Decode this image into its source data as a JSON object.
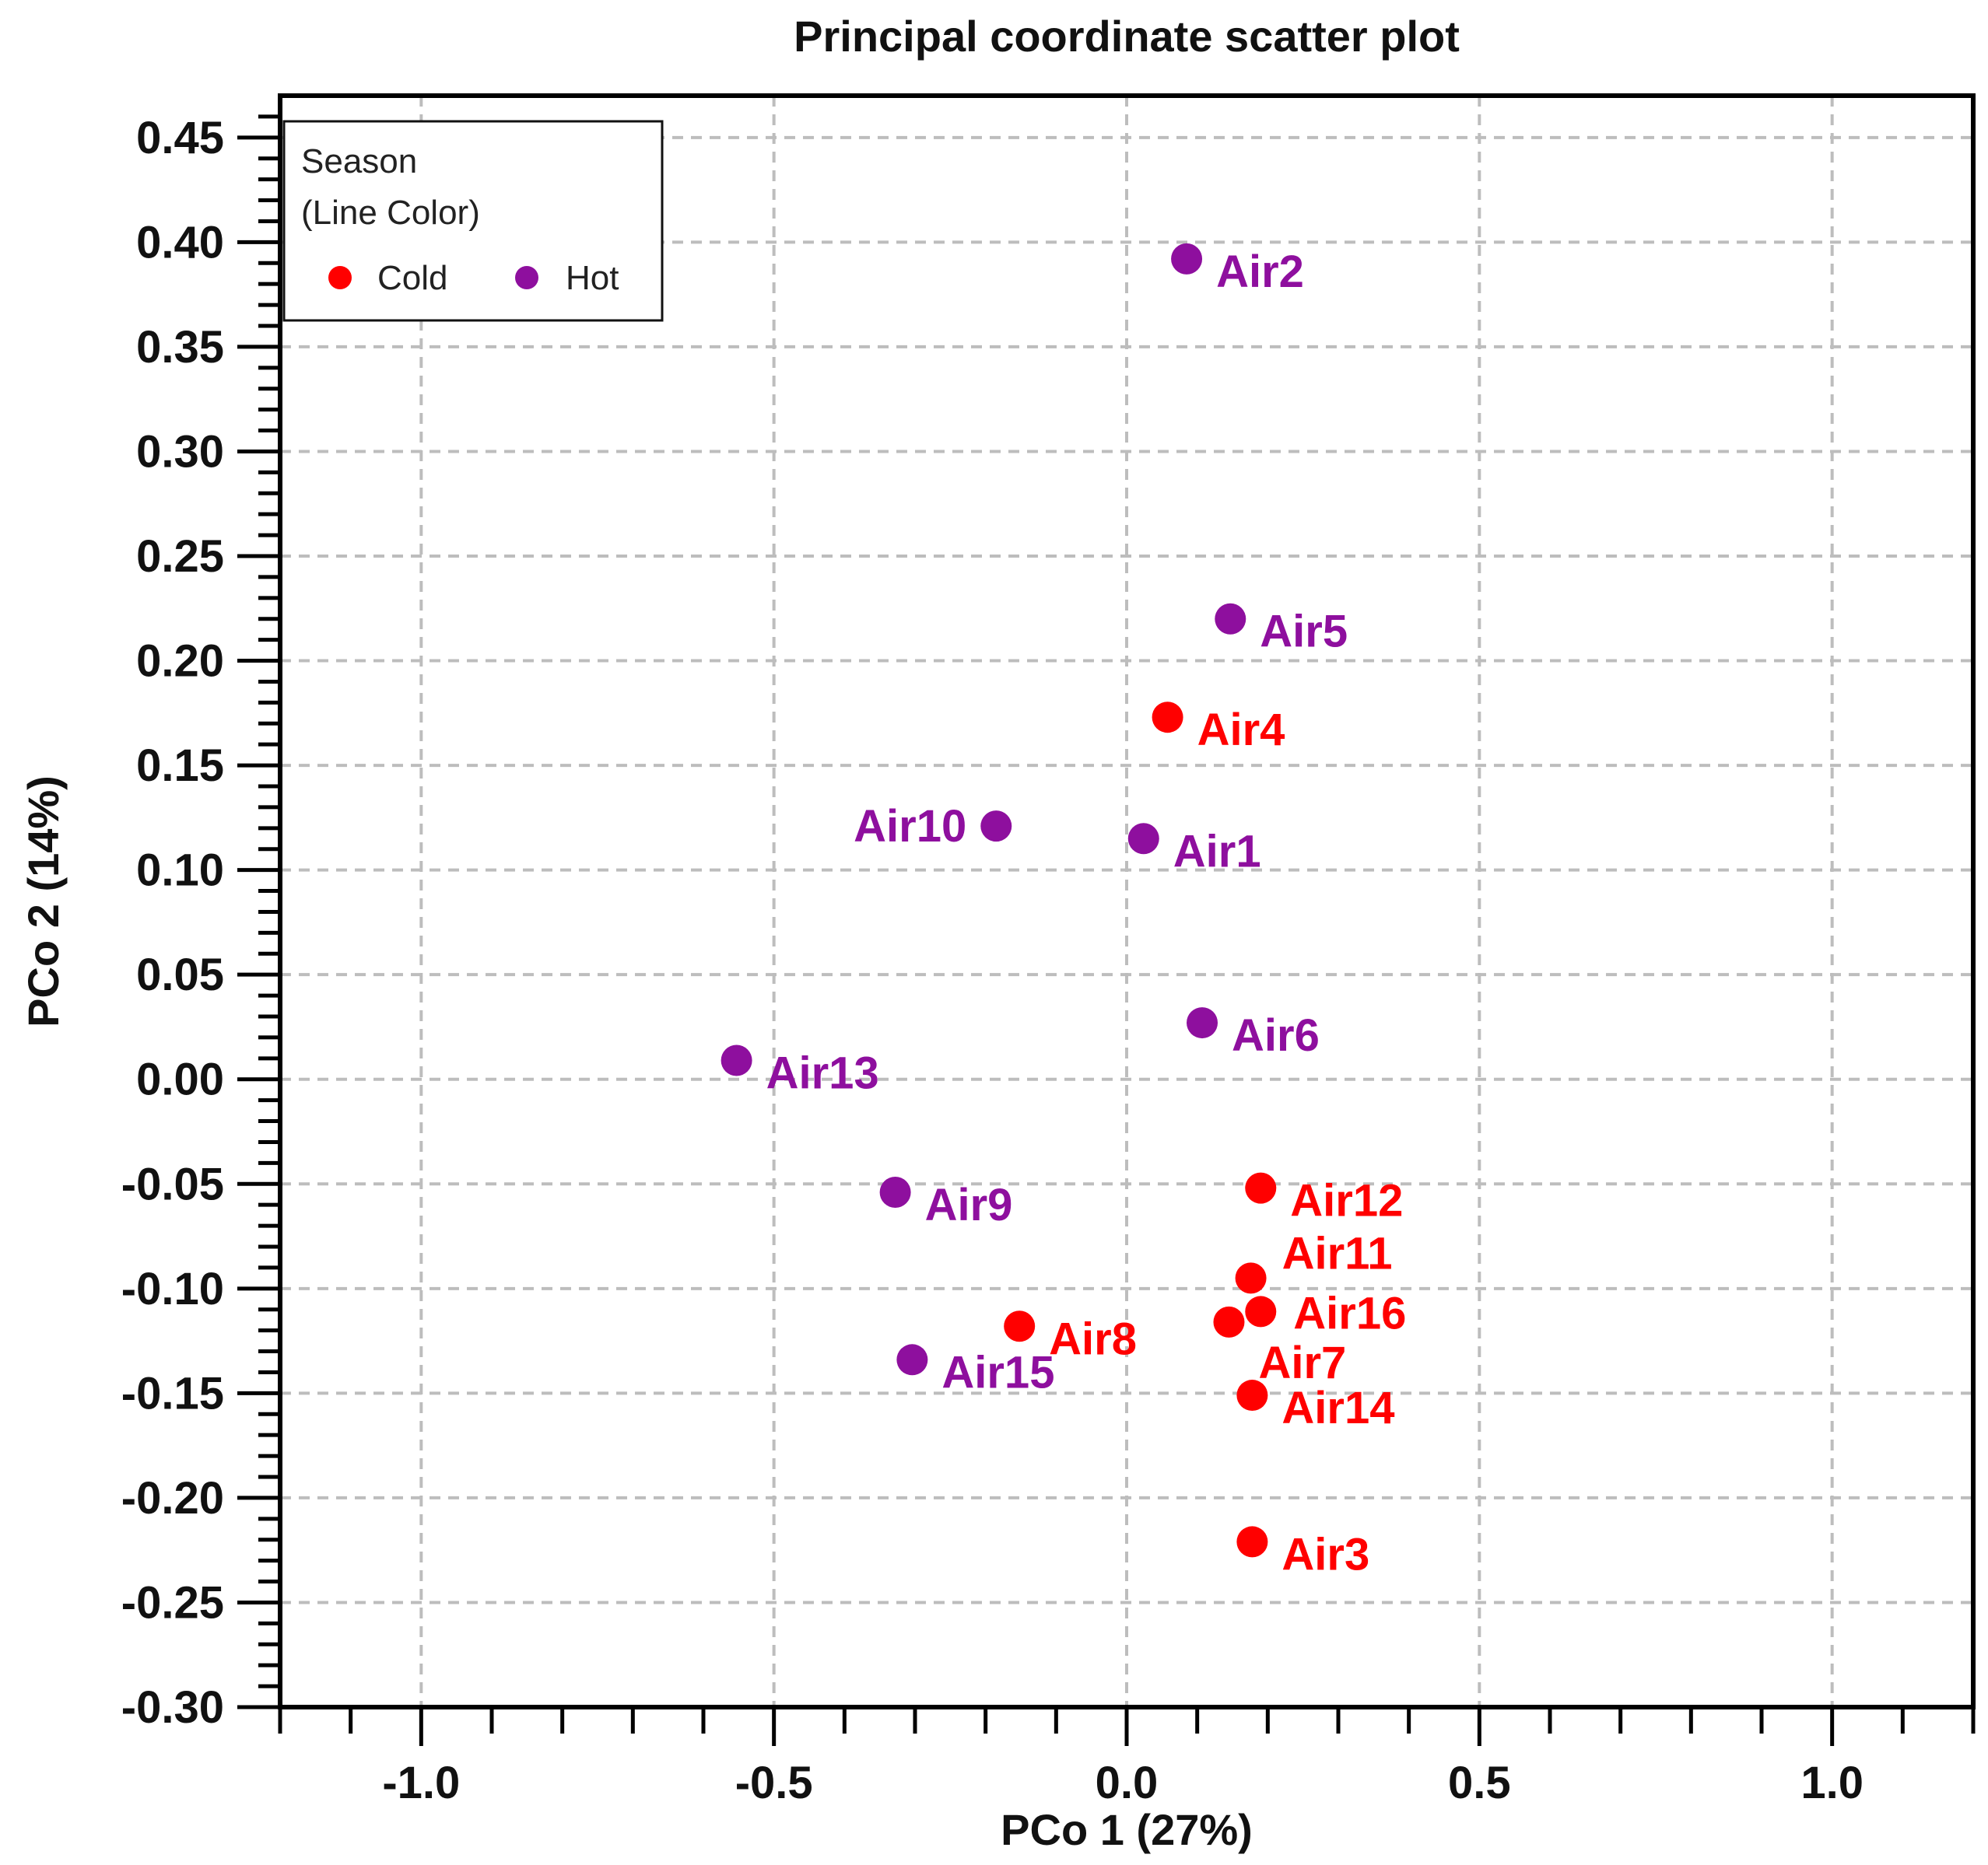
{
  "chart_data": {
    "type": "scatter",
    "title": "Principal coordinate scatter plot",
    "xlabel": "PCo 1 (27%)",
    "ylabel": "PCo 2 (14%)",
    "xlim": [
      -1.2,
      1.2
    ],
    "ylim": [
      -0.3,
      0.47
    ],
    "xticks": [
      "-1.0",
      "-0.5",
      "0.0",
      "0.5",
      "1.0"
    ],
    "yticks": [
      "0.45",
      "0.40",
      "0.35",
      "0.30",
      "0.25",
      "0.20",
      "0.15",
      "0.10",
      "0.05",
      "0.00",
      "-0.05",
      "-0.10",
      "-0.15",
      "-0.20",
      "-0.25",
      "-0.30"
    ],
    "grid": true,
    "legend": {
      "title": "Season",
      "subtitle": "(Line Color)",
      "placement": "top-left",
      "entries": [
        {
          "name": "Cold",
          "color": "#ff0000"
        },
        {
          "name": "Hot",
          "color": "#8e0f9e"
        }
      ]
    },
    "points": [
      {
        "label": "Air2",
        "group": "Hot",
        "x": 0.085,
        "y": 0.392
      },
      {
        "label": "Air5",
        "group": "Hot",
        "x": 0.147,
        "y": 0.22
      },
      {
        "label": "Air4",
        "group": "Cold",
        "x": 0.058,
        "y": 0.173
      },
      {
        "label": "Air10",
        "group": "Hot",
        "x": -0.185,
        "y": 0.121
      },
      {
        "label": "Air1",
        "group": "Hot",
        "x": 0.024,
        "y": 0.115
      },
      {
        "label": "Air6",
        "group": "Hot",
        "x": 0.107,
        "y": 0.027
      },
      {
        "label": "Air13",
        "group": "Hot",
        "x": -0.553,
        "y": 0.009
      },
      {
        "label": "Air9",
        "group": "Hot",
        "x": -0.328,
        "y": -0.054
      },
      {
        "label": "Air12",
        "group": "Cold",
        "x": 0.19,
        "y": -0.052
      },
      {
        "label": "Air11",
        "group": "Cold",
        "x": 0.176,
        "y": -0.095
      },
      {
        "label": "Air16",
        "group": "Cold",
        "x": 0.19,
        "y": -0.111
      },
      {
        "label": "Air7",
        "group": "Cold",
        "x": 0.145,
        "y": -0.116
      },
      {
        "label": "Air8",
        "group": "Cold",
        "x": -0.152,
        "y": -0.118
      },
      {
        "label": "Air15",
        "group": "Hot",
        "x": -0.304,
        "y": -0.134
      },
      {
        "label": "Air14",
        "group": "Cold",
        "x": 0.178,
        "y": -0.151
      },
      {
        "label": "Air3",
        "group": "Cold",
        "x": 0.178,
        "y": -0.221
      }
    ]
  }
}
